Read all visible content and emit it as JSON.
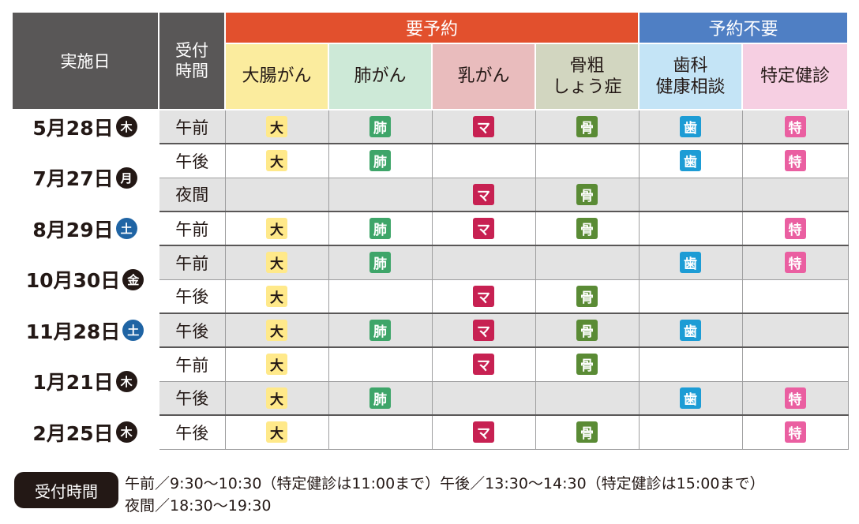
{
  "header": {
    "date_label": "実施日",
    "time_label_1": "受付",
    "time_label_2": "時間",
    "reservation_required": "要予約",
    "reservation_not_required": "予約不要",
    "categories": [
      {
        "line1": "大腸がん",
        "line2": "",
        "color": "#fbec9e"
      },
      {
        "line1": "肺がん",
        "line2": "",
        "color": "#cde9d7"
      },
      {
        "line1": "乳がん",
        "line2": "",
        "color": "#e9bcbd"
      },
      {
        "line1": "骨粗",
        "line2": "しょう症",
        "color": "#d2d6c0"
      },
      {
        "line1": "歯科",
        "line2": "健康相談",
        "color": "#c4e4f6"
      },
      {
        "line1": "特定健診",
        "line2": "",
        "color": "#f6cfe2"
      }
    ]
  },
  "badges": {
    "colon": {
      "label": "大",
      "bg": "#ffe98a",
      "fg": "#231815"
    },
    "lung": {
      "label": "肺",
      "bg": "#3ea569",
      "fg": "#ffffff"
    },
    "breast": {
      "label": "マ",
      "bg": "#c72152",
      "fg": "#ffffff"
    },
    "bone": {
      "label": "骨",
      "bg": "#5a8b35",
      "fg": "#ffffff"
    },
    "dental": {
      "label": "歯",
      "bg": "#1d9cd5",
      "fg": "#ffffff"
    },
    "checkup": {
      "label": "特",
      "bg": "#ea5fa1",
      "fg": "#ffffff"
    }
  },
  "weekday_colors": {
    "sat": "#1f64a4",
    "other": "#231815"
  },
  "schedule": [
    {
      "date": "5月28日",
      "weekday": "木",
      "weekday_type": "other",
      "sessions": [
        {
          "time": "午前",
          "shaded": true,
          "items": [
            "colon",
            "lung",
            "breast",
            "bone",
            "dental",
            "checkup"
          ]
        }
      ]
    },
    {
      "date": "7月27日",
      "weekday": "月",
      "weekday_type": "other",
      "sessions": [
        {
          "time": "午後",
          "shaded": false,
          "items": [
            "colon",
            "lung",
            null,
            null,
            "dental",
            "checkup"
          ]
        },
        {
          "time": "夜間",
          "shaded": true,
          "items": [
            null,
            null,
            "breast",
            "bone",
            null,
            null
          ]
        }
      ]
    },
    {
      "date": "8月29日",
      "weekday": "土",
      "weekday_type": "sat",
      "sessions": [
        {
          "time": "午前",
          "shaded": false,
          "items": [
            "colon",
            "lung",
            "breast",
            "bone",
            null,
            "checkup"
          ]
        }
      ]
    },
    {
      "date": "10月30日",
      "weekday": "金",
      "weekday_type": "other",
      "sessions": [
        {
          "time": "午前",
          "shaded": true,
          "items": [
            "colon",
            "lung",
            null,
            null,
            "dental",
            "checkup"
          ]
        },
        {
          "time": "午後",
          "shaded": false,
          "items": [
            "colon",
            null,
            "breast",
            "bone",
            null,
            null
          ]
        }
      ]
    },
    {
      "date": "11月28日",
      "weekday": "土",
      "weekday_type": "sat",
      "sessions": [
        {
          "time": "午後",
          "shaded": true,
          "items": [
            "colon",
            "lung",
            "breast",
            "bone",
            "dental",
            null
          ]
        }
      ]
    },
    {
      "date": "1月21日",
      "weekday": "木",
      "weekday_type": "other",
      "sessions": [
        {
          "time": "午前",
          "shaded": false,
          "items": [
            "colon",
            null,
            "breast",
            "bone",
            null,
            null
          ]
        },
        {
          "time": "午後",
          "shaded": true,
          "items": [
            "colon",
            "lung",
            null,
            null,
            "dental",
            "checkup"
          ]
        }
      ]
    },
    {
      "date": "2月25日",
      "weekday": "木",
      "weekday_type": "other",
      "sessions": [
        {
          "time": "午後",
          "shaded": false,
          "items": [
            "colon",
            null,
            "breast",
            "bone",
            null,
            "checkup"
          ]
        }
      ]
    }
  ],
  "footer": {
    "label": "受付時間",
    "line1": "午前／9:30〜10:30（特定健診は11:00まで）午後／13:30〜14:30（特定健診は15:00まで）",
    "line2": "夜間／18:30〜19:30"
  }
}
